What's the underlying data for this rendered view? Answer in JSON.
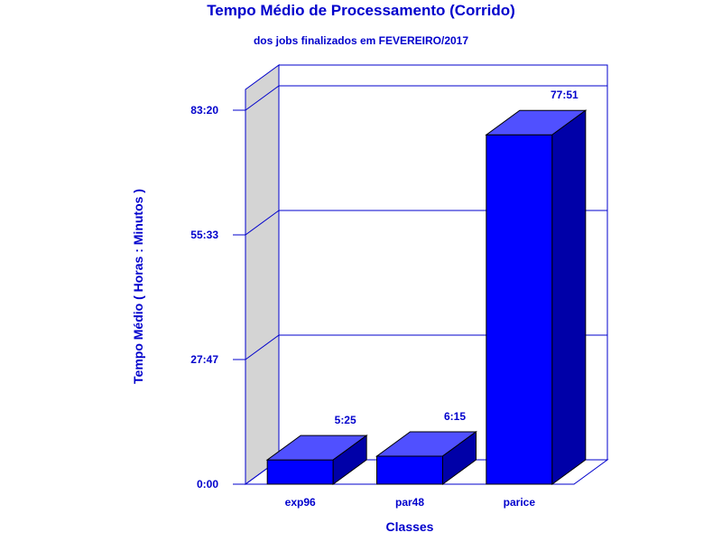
{
  "chart_data": {
    "type": "bar",
    "title": "Tempo Médio de Processamento (Corrido)",
    "subtitle": "dos jobs finalizados em FEVEREIRO/2017",
    "xlabel": "Classes",
    "ylabel": "Tempo Médio ( Horas : Minutos )",
    "categories": [
      "exp96",
      "par48",
      "parice"
    ],
    "values": [
      5.4167,
      6.25,
      77.85
    ],
    "value_labels": [
      "5:25",
      "6:15",
      "77:51"
    ],
    "value_unit": "hours",
    "ylim": [
      0,
      83.3333
    ],
    "yticks": [
      0,
      27.7778,
      55.5556,
      83.3333
    ],
    "ytick_labels": [
      "0:00",
      "27:47",
      "55:33",
      "83:20"
    ],
    "grid": true,
    "three_d": true,
    "colors": {
      "text": "#0000cc",
      "bar_front": "#0000ff",
      "bar_top": "#5050ff",
      "bar_side": "#0000a8",
      "wall": "#d4d4d4",
      "frame": "#0000cc"
    }
  }
}
